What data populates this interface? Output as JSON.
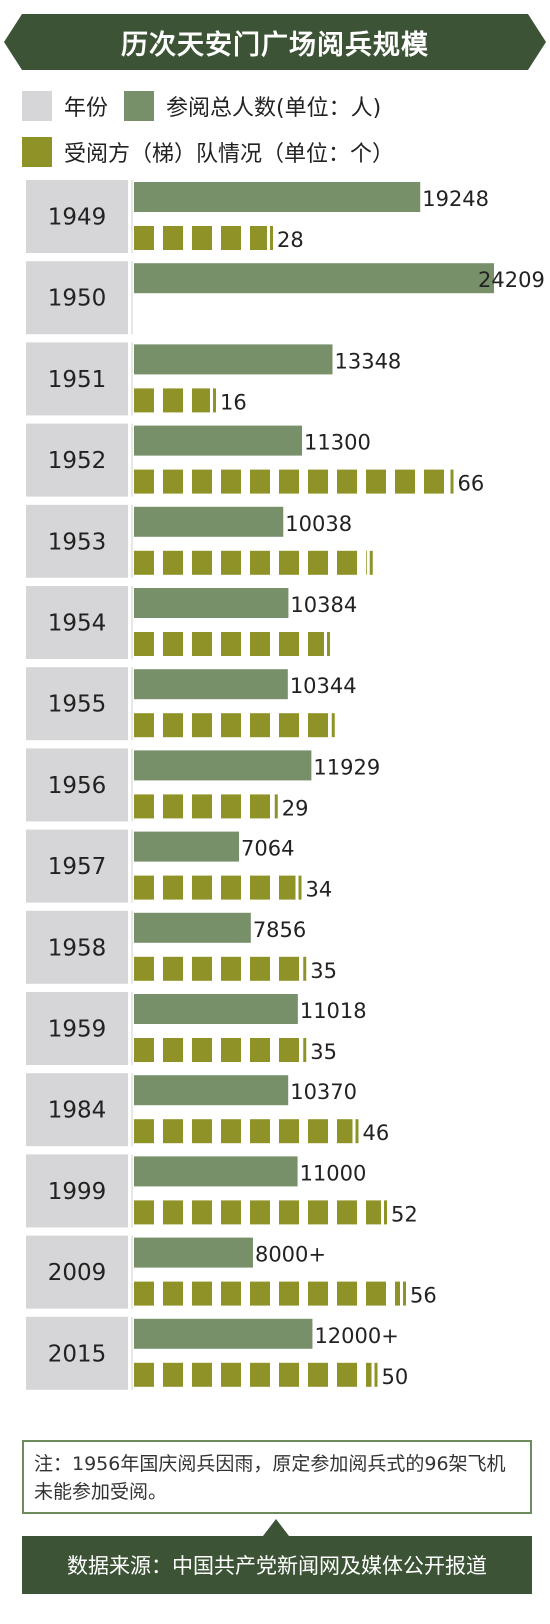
{
  "title": "历次天安门广场阅兵规模",
  "legend": {
    "year": "年份",
    "personnel": "参阅总人数(单位：人)",
    "units": "受阅方（梯）队情况（单位：个）"
  },
  "colors": {
    "dark_green": "#3c5336",
    "personnel_bar": "#77906a",
    "units_bar": "#8f9327",
    "year_cell": "#d6d6d8",
    "frame_green": "#6c8c5d"
  },
  "note": "注：1956年国庆阅兵因雨，原定参加阅兵式的96架飞机未能参加受阅。",
  "source": "数据来源：中国共产党新闻网及媒体公开报道",
  "chart_data": {
    "type": "bar",
    "orientation": "horizontal",
    "categories": [
      "1949",
      "1950",
      "1951",
      "1952",
      "1953",
      "1954",
      "1955",
      "1956",
      "1957",
      "1958",
      "1959",
      "1984",
      "1999",
      "2009",
      "2015"
    ],
    "series": [
      {
        "name": "参阅总人数(单位：人)",
        "values": [
          19248,
          24209,
          13348,
          11300,
          10038,
          10384,
          10344,
          11929,
          7064,
          7856,
          11018,
          10370,
          11000,
          8000,
          12000
        ],
        "labels": [
          "19248",
          "24209",
          "13348",
          "11300",
          "10038",
          "10384",
          "10344",
          "11929",
          "7064",
          "7856",
          "11018",
          "10370",
          "11000",
          "8000+",
          "12000+"
        ]
      },
      {
        "name": "受阅方（梯）队情况（单位：个）",
        "values": [
          28,
          null,
          16,
          66,
          49,
          40,
          41,
          29,
          34,
          35,
          35,
          46,
          52,
          56,
          50
        ],
        "labels": [
          "28",
          "",
          "16",
          "66",
          "",
          "",
          "",
          "29",
          "34",
          "35",
          "35",
          "46",
          "52",
          "56",
          "50"
        ]
      }
    ],
    "xlim": [
      0,
      24209
    ],
    "grid": false,
    "legend": "top-left"
  }
}
